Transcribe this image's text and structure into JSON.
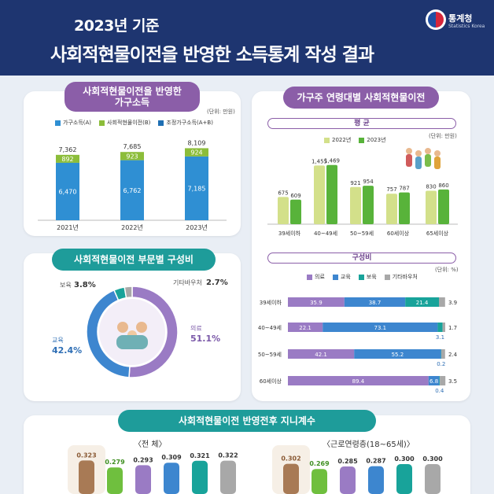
{
  "header": {
    "year_title": "2023년 기준",
    "main_title": "사회적현물이전을 반영한 소득통계 작성 결과",
    "logo_text": "통계청",
    "logo_sub": "Statistics Korea"
  },
  "colors": {
    "household_income": "#2f8fd3",
    "social_transfer": "#8cbd3a",
    "adjusted": "#1e6fb3",
    "y2022": "#d3e08a",
    "y2023": "#58b33a",
    "medical": "#9a7bc4",
    "education": "#3d86cf",
    "childcare": "#18a39a",
    "other": "#a8a8a8"
  },
  "panel1": {
    "title_line1": "사회적현물이전을 반영한",
    "title_line2": "가구소득",
    "unit": "(단위: 만원)",
    "legend": [
      "가구소득(A)",
      "사회적현물이전(B)",
      "조정가구소득(A+B)"
    ]
  },
  "panel2": {
    "title": "사회적현물이전 부문별 구성비"
  },
  "panel3": {
    "title": "가구주 연령대별 사회적현물이전",
    "avg_title": "평 균",
    "unit": "(단위: 만원)",
    "legend": [
      "2022년",
      "2023년"
    ],
    "comp_title": "구성비",
    "comp_unit": "(단위: %)",
    "comp_legend": [
      "의료",
      "교육",
      "보육",
      "기타바우처"
    ]
  },
  "panel4": {
    "title": "사회적현물이전 반영전후 지니계수",
    "left_label": "〈전 체〉",
    "right_label": "〈근로연령층(18~65세)〉"
  },
  "chart_data": [
    {
      "type": "bar",
      "stacked": true,
      "categories": [
        "2021년",
        "2022년",
        "2023년"
      ],
      "series": [
        {
          "name": "가구소득(A)",
          "values": [
            6470,
            6762,
            7185
          ]
        },
        {
          "name": "사회적현물이전(B)",
          "values": [
            892,
            923,
            924
          ]
        }
      ],
      "totals": [
        7362,
        7685,
        8109
      ],
      "ylim": [
        0,
        8500
      ]
    },
    {
      "type": "pie",
      "donut": true,
      "labels": [
        "의료",
        "교육",
        "보육",
        "기타바우처"
      ],
      "values": [
        51.1,
        42.4,
        3.8,
        2.7
      ],
      "display_values": [
        "51.1%",
        "42.4%",
        "3.8%",
        "2.7%"
      ]
    },
    {
      "type": "bar",
      "categories": [
        "39세이하",
        "40~49세",
        "50~59세",
        "60세이상",
        "65세이상"
      ],
      "series": [
        {
          "name": "2022년",
          "values": [
            675,
            1455,
            921,
            757,
            830
          ]
        },
        {
          "name": "2023년",
          "values": [
            609,
            1469,
            954,
            787,
            860
          ]
        }
      ],
      "ylim": [
        0,
        1600
      ]
    },
    {
      "type": "bar",
      "orientation": "horizontal",
      "stacked": true,
      "categories": [
        "39세이하",
        "40~49세",
        "50~59세",
        "60세이상"
      ],
      "series": [
        {
          "name": "의료",
          "values": [
            35.9,
            22.1,
            42.1,
            89.4
          ]
        },
        {
          "name": "교육",
          "values": [
            38.7,
            73.1,
            55.2,
            6.8
          ]
        },
        {
          "name": "보육",
          "values": [
            21.4,
            3.1,
            0.2,
            0.4
          ]
        },
        {
          "name": "기타바우처",
          "values": [
            3.9,
            1.7,
            2.4,
            3.5
          ]
        }
      ],
      "ylim": [
        0,
        100
      ]
    },
    {
      "type": "bar",
      "label": "〈전 체〉",
      "values": [
        0.323,
        0.279,
        0.293,
        0.309,
        0.321,
        0.322
      ],
      "display_values": [
        "0.323",
        "0.279",
        "0.293",
        "0.309",
        "0.321",
        "0.322"
      ]
    },
    {
      "type": "bar",
      "label": "〈근로연령층(18~65세)〉",
      "values": [
        0.302,
        0.269,
        0.285,
        0.287,
        0.3,
        0.3
      ],
      "display_values": [
        "0.302",
        "0.269",
        "0.285",
        "0.287",
        "0.300",
        "0.300"
      ]
    }
  ]
}
